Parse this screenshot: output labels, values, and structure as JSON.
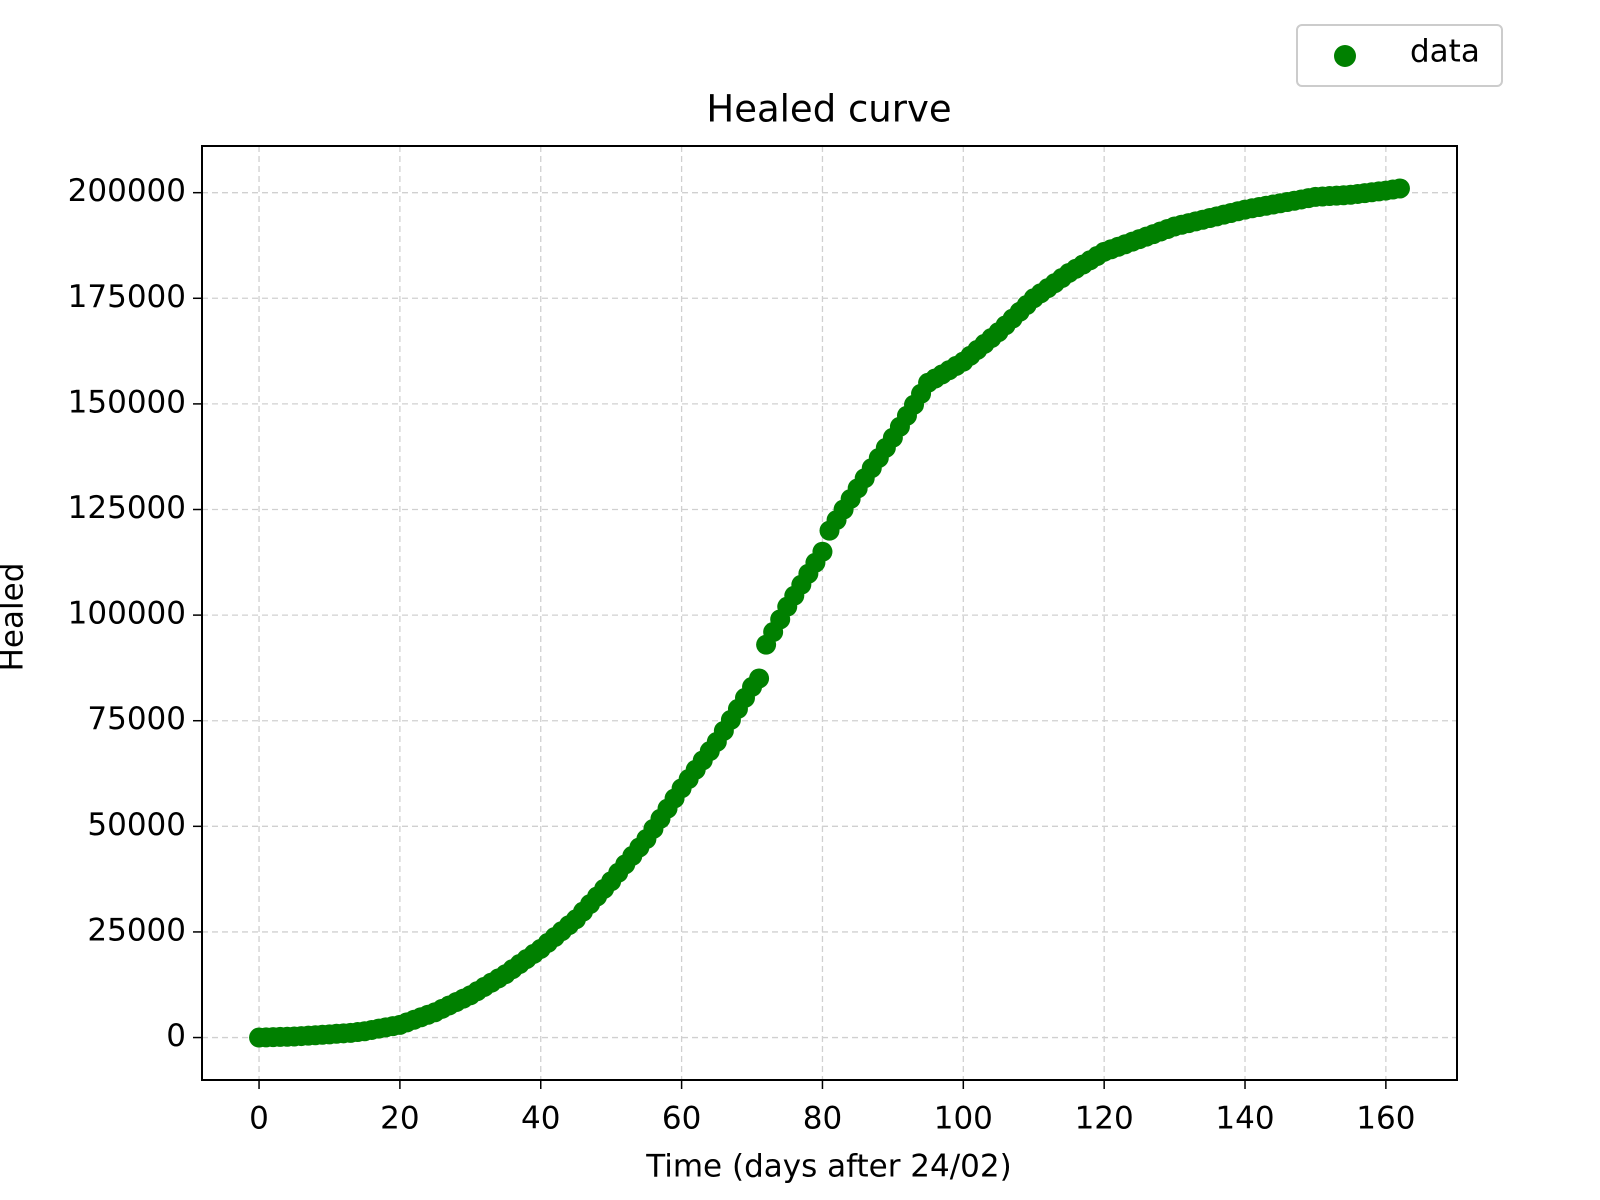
{
  "chart_data": {
    "type": "scatter",
    "title": "Healed curve",
    "x_label": "Time (days after 24/02)",
    "y_label": "Healed",
    "x": [
      0,
      1,
      2,
      3,
      4,
      5,
      6,
      7,
      8,
      9,
      10,
      11,
      12,
      13,
      14,
      15,
      16,
      17,
      18,
      19,
      20,
      21,
      22,
      23,
      24,
      25,
      26,
      27,
      28,
      29,
      30,
      31,
      32,
      33,
      34,
      35,
      36,
      37,
      38,
      39,
      40,
      41,
      42,
      43,
      44,
      45,
      46,
      47,
      48,
      49,
      50,
      51,
      52,
      53,
      54,
      55,
      56,
      57,
      58,
      59,
      60,
      61,
      62,
      63,
      64,
      65,
      66,
      67,
      68,
      69,
      70,
      71,
      72,
      73,
      74,
      75,
      76,
      77,
      78,
      79,
      80,
      81,
      82,
      83,
      84,
      85,
      86,
      87,
      88,
      89,
      90,
      91,
      92,
      93,
      94,
      95,
      96,
      97,
      98,
      99,
      100,
      101,
      102,
      103,
      104,
      105,
      106,
      107,
      108,
      109,
      110,
      111,
      112,
      113,
      114,
      115,
      116,
      117,
      118,
      119,
      120,
      121,
      122,
      123,
      124,
      125,
      126,
      127,
      128,
      129,
      130,
      131,
      132,
      133,
      134,
      135,
      136,
      137,
      138,
      139,
      140,
      141,
      142,
      143,
      144,
      145,
      146,
      147,
      148,
      149,
      150,
      151,
      152,
      153,
      154,
      155,
      156,
      157,
      158,
      159,
      160,
      161,
      162
    ],
    "series": [
      {
        "name": "data",
        "color": "#008000",
        "values": [
          0,
          50,
          100,
          150,
          200,
          250,
          350,
          450,
          550,
          650,
          750,
          900,
          1000,
          1100,
          1300,
          1500,
          1800,
          2100,
          2400,
          2700,
          3000,
          3600,
          4200,
          4800,
          5400,
          6000,
          6800,
          7600,
          8400,
          9200,
          10000,
          11000,
          12000,
          13000,
          14000,
          15000,
          16200,
          17400,
          18600,
          19800,
          21000,
          22400,
          23800,
          25200,
          26600,
          28000,
          29800,
          31600,
          33400,
          35200,
          37000,
          39000,
          41000,
          43000,
          45000,
          47000,
          49400,
          51800,
          54200,
          56600,
          59000,
          61200,
          63400,
          65600,
          67800,
          70000,
          72600,
          75200,
          77800,
          80400,
          83000,
          85000,
          93000,
          96000,
          99000,
          102000,
          104600,
          107200,
          109800,
          112400,
          115000,
          120000,
          122500,
          125000,
          127500,
          130000,
          132400,
          134800,
          137200,
          139600,
          142000,
          144600,
          147200,
          149800,
          152400,
          155000,
          156000,
          157000,
          158000,
          159000,
          160000,
          161400,
          162800,
          164200,
          165600,
          167000,
          168600,
          170200,
          171800,
          173400,
          175000,
          176200,
          177400,
          178600,
          179800,
          181000,
          182000,
          183000,
          184000,
          185000,
          186000,
          186600,
          187200,
          187800,
          188400,
          189000,
          189600,
          190200,
          190800,
          191400,
          192000,
          192400,
          192800,
          193200,
          193600,
          194000,
          194400,
          194800,
          195200,
          195600,
          196000,
          196300,
          196600,
          196900,
          197200,
          197500,
          197800,
          198100,
          198400,
          198700,
          199000,
          199100,
          199200,
          199300,
          199400,
          199500,
          199700,
          199900,
          200100,
          200300,
          200500,
          200750,
          201000
        ]
      }
    ],
    "xlim": [
      -8.1,
      170.1
    ],
    "ylim": [
      -10050,
      211050
    ],
    "xticks": [
      0,
      20,
      40,
      60,
      80,
      100,
      120,
      140,
      160
    ],
    "yticks": [
      0,
      25000,
      50000,
      75000,
      100000,
      125000,
      150000,
      175000,
      200000
    ],
    "grid": true,
    "legend": "upper right"
  }
}
